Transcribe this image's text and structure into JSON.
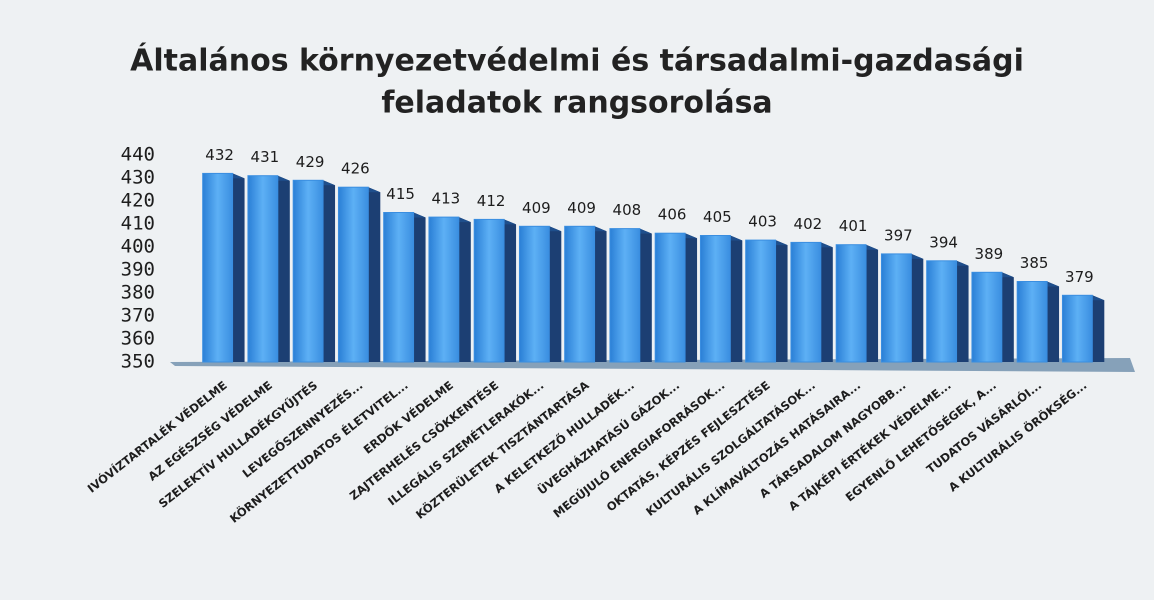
{
  "chart_data": {
    "type": "bar3d",
    "title": [
      "Általános környezetvédelmi és társadalmi-gazdasági",
      "feladatok rangsorolása"
    ],
    "categories": [
      "IVÓVÍZTARTALÉK VÉDELME",
      "AZ EGÉSZSÉG VÉDELME",
      "SZELEKTÍV HULLADÉKGYŰJTÉS",
      "LEVEGŐSZENNYEZÉS...",
      "KÖRNYEZETTUDATOS ÉLETVITEL...",
      "ERDŐK VÉDELME",
      "ZAJTERHELÉS CSÖKKENTÉSE",
      "ILLEGÁLIS SZEMÉTLERAKÓK...",
      "KÖZTERÜLETEK TISZTÁNTARTÁSA",
      "A KELETKEZŐ HULLADÉK...",
      "ÜVEGHÁZHATÁSÚ GÁZOK...",
      "MEGÚJULÓ ENERGIAFORRÁSOK...",
      "OKTATÁS, KÉPZÉS FEJLESZTÉSE",
      "KULTURÁLIS SZOLGÁLTATÁSOK...",
      "A KLÍMAVÁLTOZÁS HATÁSAIRA...",
      "A TÁRSADALOM NAGYOBB...",
      "A TÁJKÉPI ÉRTÉKEK VÉDELME...",
      "EGYENLŐ LEHETŐSÉGEK, A...",
      "TUDATOS VÁSÁRLÓI...",
      "A KULTURÁLIS ÖRÖKSÉG..."
    ],
    "values": [
      432,
      431,
      429,
      426,
      415,
      413,
      412,
      409,
      409,
      408,
      406,
      405,
      403,
      402,
      401,
      397,
      394,
      389,
      385,
      379
    ],
    "color": "#3a8ee0",
    "ylim": [
      350,
      440
    ],
    "yticks": [
      350,
      360,
      370,
      380,
      390,
      400,
      410,
      420,
      430,
      440
    ]
  }
}
